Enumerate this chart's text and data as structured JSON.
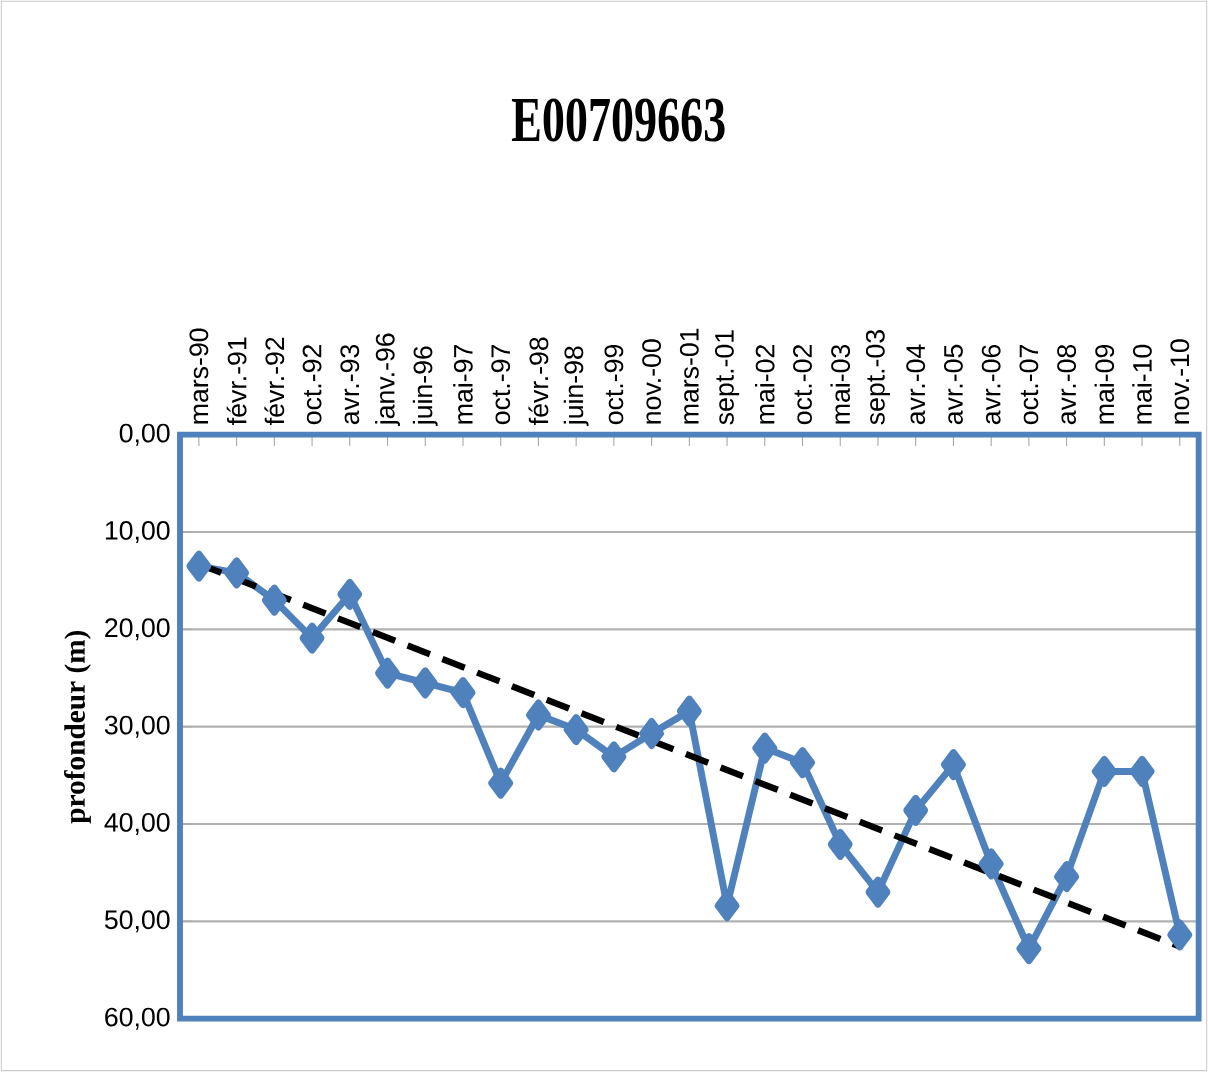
{
  "chart_data": {
    "type": "line",
    "title": "E00709663",
    "ylabel": "profondeur (m)",
    "categories": [
      "mars-90",
      "févr.-91",
      "févr.-92",
      "oct.-92",
      "avr.-93",
      "janv.-96",
      "juin-96",
      "mai-97",
      "oct.-97",
      "févr.-98",
      "juin-98",
      "oct.-99",
      "nov.-00",
      "mars-01",
      "sept.-01",
      "mai-02",
      "oct.-02",
      "mai-03",
      "sept.-03",
      "avr.-04",
      "avr.-05",
      "avr.-06",
      "oct.-07",
      "avr.-08",
      "mai-09",
      "mai-10",
      "nov.-10"
    ],
    "series": [
      {
        "color": "#4f81bd",
        "marker": "diamond",
        "line_style": "solid",
        "values": [
          13.5,
          14.2,
          17.0,
          20.9,
          16.4,
          24.5,
          25.5,
          26.5,
          35.8,
          28.8,
          30.3,
          33.1,
          30.7,
          28.4,
          48.4,
          32.2,
          33.7,
          42.1,
          47.0,
          38.6,
          33.9,
          44.1,
          52.8,
          45.4,
          34.6,
          34.6,
          51.4
        ]
      },
      {
        "type": "line",
        "x": [
          "mars-90",
          "nov.-10"
        ],
        "color": "#000000",
        "marker": "none",
        "line_style": "dashed",
        "values": [
          13.3,
          52.6
        ]
      }
    ],
    "ylim": [
      60,
      0
    ],
    "yticks": [
      {
        "value": 0,
        "label": "0,00"
      },
      {
        "value": 10,
        "label": "10,00"
      },
      {
        "value": 20,
        "label": "20,00"
      },
      {
        "value": 30,
        "label": "30,00"
      },
      {
        "value": 40,
        "label": "40,00"
      },
      {
        "value": 50,
        "label": "50,00"
      },
      {
        "value": 60,
        "label": "60,00"
      }
    ],
    "grid": "y"
  }
}
